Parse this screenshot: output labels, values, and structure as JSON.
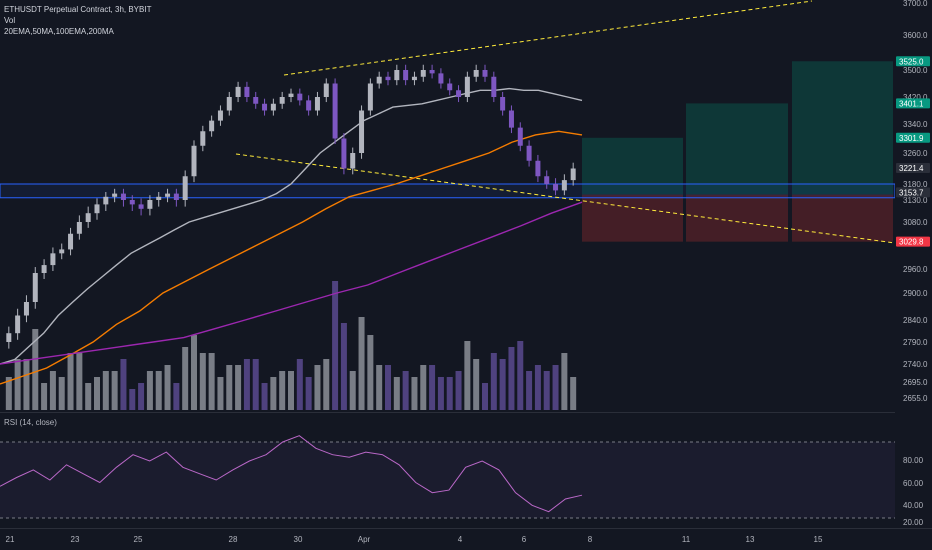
{
  "header": {
    "symbol_line": "ETHUSDT Perpetual Contract, 3h, BYBIT",
    "volume_label": "Vol",
    "ma_label": "20EMA,50MA,100EMA,200MA"
  },
  "rsi": {
    "label": "RSI (14, close)",
    "levels": [
      "80.00",
      "60.00",
      "40.00",
      "20.00"
    ]
  },
  "price_axis": {
    "ticks": [
      "3700.0",
      "3600.0",
      "3500.0",
      "3420.0",
      "3340.0",
      "3260.0",
      "3180.0",
      "3130.0",
      "3080.0",
      "2960.0",
      "2900.0",
      "2840.0",
      "2790.0",
      "2740.0",
      "2695.0",
      "2655.0"
    ]
  },
  "price_badges": [
    {
      "label": "3525.0",
      "color": "#089981"
    },
    {
      "label": "3401.1",
      "color": "#089981"
    },
    {
      "label": "3301.9",
      "color": "#089981"
    },
    {
      "label": "3221.4",
      "color": "#2a2e39"
    },
    {
      "label": "3153.7",
      "color": "#2a2e39"
    },
    {
      "label": "3029.8",
      "color": "#f23645"
    }
  ],
  "time_axis": {
    "ticks": [
      "21",
      "23",
      "25",
      "28",
      "30",
      "Apr",
      "4",
      "6",
      "8",
      "11",
      "13",
      "15"
    ]
  },
  "colors": {
    "up": "#b2b5be",
    "down": "#7e57c2",
    "ema20": "#b2b5be",
    "ma50": "#f57c00",
    "ema100": "#9c27b0",
    "trend": "#ffeb3b",
    "zone": "#2962ff",
    "target_fill": "#0e3b3a",
    "stop_fill": "#4a1f27"
  },
  "chart_data": {
    "type": "candlestick",
    "symbol": "ETHUSDT",
    "interval": "3h",
    "close_path": [
      2790,
      2810,
      2850,
      2880,
      2950,
      2970,
      3000,
      3010,
      3050,
      3080,
      3100,
      3120,
      3140,
      3150,
      3130,
      3120,
      3110,
      3130,
      3140,
      3150,
      3130,
      3200,
      3280,
      3320,
      3350,
      3380,
      3420,
      3450,
      3420,
      3400,
      3380,
      3400,
      3420,
      3430,
      3410,
      3380,
      3420,
      3460,
      3300,
      3220,
      3260,
      3380,
      3460,
      3480,
      3470,
      3500,
      3470,
      3480,
      3500,
      3490,
      3460,
      3440,
      3420,
      3480,
      3500,
      3480,
      3420,
      3380,
      3330,
      3280,
      3240,
      3200,
      3180,
      3160,
      3190,
      3220
    ],
    "ema20": [
      2740,
      2750,
      2780,
      2810,
      2850,
      2880,
      2910,
      2940,
      2970,
      3000,
      3020,
      3040,
      3060,
      3080,
      3090,
      3100,
      3110,
      3120,
      3130,
      3150,
      3180,
      3220,
      3260,
      3290,
      3320,
      3350,
      3370,
      3390,
      3395,
      3400,
      3410,
      3420,
      3430,
      3440,
      3440,
      3445,
      3440,
      3440,
      3430,
      3420,
      3410
    ],
    "ma50": [
      2690,
      2710,
      2730,
      2760,
      2790,
      2830,
      2860,
      2900,
      2930,
      2960,
      2990,
      3020,
      3050,
      3080,
      3110,
      3140,
      3160,
      3180,
      3200,
      3220,
      3240,
      3260,
      3290,
      3310,
      3320,
      3310
    ],
    "ema100": [
      2740,
      2750,
      2760,
      2770,
      2780,
      2790,
      2800,
      2820,
      2840,
      2860,
      2880,
      2900,
      2920,
      2950,
      2980,
      3010,
      3040,
      3070,
      3100,
      3125
    ],
    "zone_range": [
      3137,
      3180
    ],
    "rsi_values": [
      45,
      52,
      58,
      50,
      62,
      55,
      48,
      60,
      70,
      65,
      72,
      60,
      55,
      50,
      58,
      65,
      70,
      80,
      85,
      75,
      70,
      68,
      72,
      70,
      62,
      48,
      40,
      42,
      60,
      65,
      58,
      40,
      30,
      25,
      35,
      38
    ]
  }
}
